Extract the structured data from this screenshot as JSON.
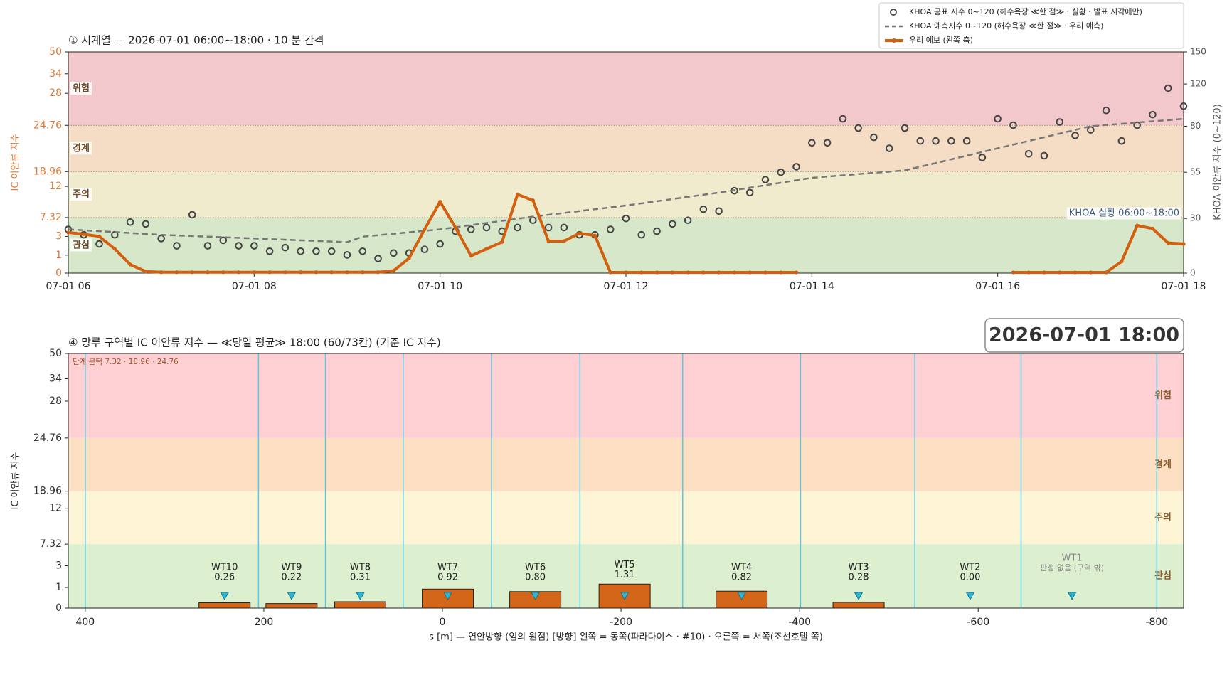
{
  "chart_data": [
    {
      "type": "line",
      "title": "① 시계열 — 2026-07-01 06:00~18:00 · 10 분 간격",
      "ylabel": "IC 이안류 지수",
      "y2label": "KHOA 이안류 지수 (0~120)",
      "annotation": "KHOA 실황 06:00~18:00",
      "legend": "upper right",
      "xlim": [
        6,
        18
      ],
      "xticks": [
        {
          "value": 6,
          "label": "07-01 06"
        },
        {
          "value": 8,
          "label": "07-01 08"
        },
        {
          "value": 10,
          "label": "07-01 10"
        },
        {
          "value": 12,
          "label": "07-01 12"
        },
        {
          "value": 14,
          "label": "07-01 14"
        },
        {
          "value": 16,
          "label": "07-01 16"
        },
        {
          "value": 18,
          "label": "07-01 18"
        }
      ],
      "ylim": [
        0,
        50
      ],
      "yticks": [
        0,
        1,
        3,
        7.32,
        12,
        18.96,
        24.76,
        28,
        34,
        50
      ],
      "y2lim": [
        0,
        150
      ],
      "y2ticks": [
        0,
        30,
        55,
        80,
        120,
        150
      ],
      "bands": [
        {
          "name": "관심",
          "from": 0,
          "to": 7.32,
          "color": "#d6e8c9"
        },
        {
          "name": "주의",
          "from": 7.32,
          "to": 18.96,
          "color": "#f1ebcd"
        },
        {
          "name": "경계",
          "from": 18.96,
          "to": 24.76,
          "color": "#f5dcc4"
        },
        {
          "name": "위험",
          "from": 24.76,
          "to": 50,
          "color": "#f2c8cd"
        }
      ],
      "x": [
        6,
        6.1667,
        6.3333,
        6.5,
        6.6667,
        6.8333,
        7,
        7.1667,
        7.3333,
        7.5,
        7.6667,
        7.8333,
        8,
        8.1667,
        8.3333,
        8.5,
        8.6667,
        8.8333,
        9,
        9.1667,
        9.3333,
        9.5,
        9.6667,
        9.8333,
        10,
        10.1667,
        10.3333,
        10.5,
        10.6667,
        10.8333,
        11,
        11.1667,
        11.3333,
        11.5,
        11.6667,
        11.8333,
        12,
        12.1667,
        12.3333,
        12.5,
        12.6667,
        12.8333,
        13,
        13.1667,
        13.3333,
        13.5,
        13.6667,
        13.8333,
        14,
        14.1667,
        14.3333,
        14.5,
        14.6667,
        14.8333,
        15,
        15.1667,
        15.3333,
        15.5,
        15.6667,
        15.8333,
        16,
        16.1667,
        16.3333,
        16.5,
        16.6667,
        16.8333,
        17,
        17.1667,
        17.3333,
        17.5,
        17.6667,
        17.8333,
        18
      ],
      "series": [
        {
          "name": "KHOA 공표 지수 0~120 (해수욕장 ≪한 점≫ · 실황 · 발표 시각에만)",
          "type": "scatter",
          "axis": "y2",
          "color": "#444444",
          "values": [
            24,
            21,
            16,
            21,
            28,
            27,
            19,
            15,
            32,
            15,
            18,
            15,
            15,
            12,
            14,
            12,
            12,
            12,
            10,
            12,
            8,
            11,
            11,
            13,
            16,
            23,
            24,
            25,
            23,
            25,
            29,
            25,
            25,
            21,
            21,
            24,
            30,
            21,
            23,
            27,
            29,
            35,
            34,
            45,
            44,
            51,
            55,
            58,
            71,
            71,
            87,
            79,
            74,
            68,
            79,
            72,
            72,
            72,
            72,
            63,
            87,
            81,
            65,
            64,
            84,
            75,
            78,
            95,
            72,
            81,
            91,
            116,
            99
          ]
        },
        {
          "name": "KHOA 예측지수 0~120 (해수욕장 ≪한 점≫ · 우리 예측)",
          "type": "line",
          "dash": true,
          "axis": "y2",
          "color": "#777777",
          "x": [
            6,
            7,
            8,
            9,
            9.1667,
            10,
            11,
            12,
            13,
            14,
            15,
            16,
            17,
            18
          ],
          "values": [
            24,
            21,
            19,
            17,
            20,
            24,
            31,
            37,
            44,
            52,
            56,
            68,
            80,
            87
          ]
        },
        {
          "name": "우리 예보 (왼쪽 축)",
          "type": "line",
          "axis": "y",
          "color": "#d35f0f",
          "values": [
            3.9,
            3.5,
            3.0,
            1.67,
            0.48,
            0.09,
            0.05,
            0.05,
            0.05,
            0.05,
            0.05,
            0.05,
            0.05,
            0.05,
            0.05,
            0.05,
            0.05,
            0.05,
            0.05,
            0.05,
            0.05,
            0.13,
            0.83,
            4.6,
            9.7,
            5.0,
            0.96,
            1.67,
            2.4,
            10.8,
            9.9,
            2.5,
            2.5,
            3.7,
            3.2,
            0.04,
            0.04,
            0.04,
            0.04,
            0.04,
            0.04,
            0.04,
            0.04,
            0.04,
            0.04,
            0.04,
            0.04,
            0.04,
            null,
            null,
            null,
            null,
            null,
            null,
            null,
            null,
            null,
            null,
            null,
            null,
            null,
            0.04,
            0.04,
            0.04,
            0.04,
            0.04,
            0.04,
            0.04,
            0.65,
            5.5,
            4.8,
            2.3,
            2.2
          ]
        }
      ]
    },
    {
      "type": "bar",
      "title": "④ 망루 구역별 IC 이안류 지수 — ≪당일 평균≫ 18:00  (60/73칸)   (기준 IC 지수)",
      "timestamp": "2026-07-01  18:00",
      "xlabel": "s [m] — 연안방향 (임의 원점)     [방향] 왼쪽 = 동쪽(파라다이스 · #10) · 오른쪽 = 서쪽(조선호텔 쪽)",
      "ylabel": "IC 이안류 지수",
      "annotation": "단계 문턱 7.32 · 18.96 · 24.76",
      "xlim": [
        419,
        -830
      ],
      "xticks": [
        400,
        200,
        0,
        -200,
        -400,
        -600,
        -800
      ],
      "ylim": [
        0,
        50
      ],
      "yticks": [
        0,
        1,
        3,
        7.32,
        12,
        18.96,
        24.76,
        28,
        34,
        50
      ],
      "bands": [
        {
          "name": "관심",
          "from": 0,
          "to": 7.32,
          "color": "#dcf0d0"
        },
        {
          "name": "주의",
          "from": 7.32,
          "to": 18.96,
          "color": "#fdf5d5"
        },
        {
          "name": "경계",
          "from": 18.96,
          "to": 24.76,
          "color": "#fde0c3"
        },
        {
          "name": "위험",
          "from": 24.76,
          "to": 50,
          "color": "#ffd0d3"
        }
      ],
      "zone_edges": [
        400,
        206,
        131,
        44,
        -55,
        -154,
        -269,
        -401,
        -529,
        -648,
        -800
      ],
      "color": "#d4661a",
      "marker_color": "#29b6d8",
      "categories": [
        "WT10",
        "WT9",
        "WT8",
        "WT7",
        "WT6",
        "WT5",
        "WT4",
        "WT3",
        "WT2",
        "WT1"
      ],
      "x": [
        244,
        169,
        92,
        -6,
        -104,
        -204,
        -335,
        -466,
        -591,
        -705
      ],
      "values": [
        0.26,
        0.22,
        0.31,
        0.92,
        0.8,
        1.31,
        0.82,
        0.28,
        0,
        null
      ],
      "value_labels": [
        "0.26",
        "0.22",
        "0.31",
        "0.92",
        "0.80",
        "1.31",
        "0.82",
        "0.28",
        "0.00",
        "판정 없음 (구역 밖)"
      ]
    }
  ]
}
